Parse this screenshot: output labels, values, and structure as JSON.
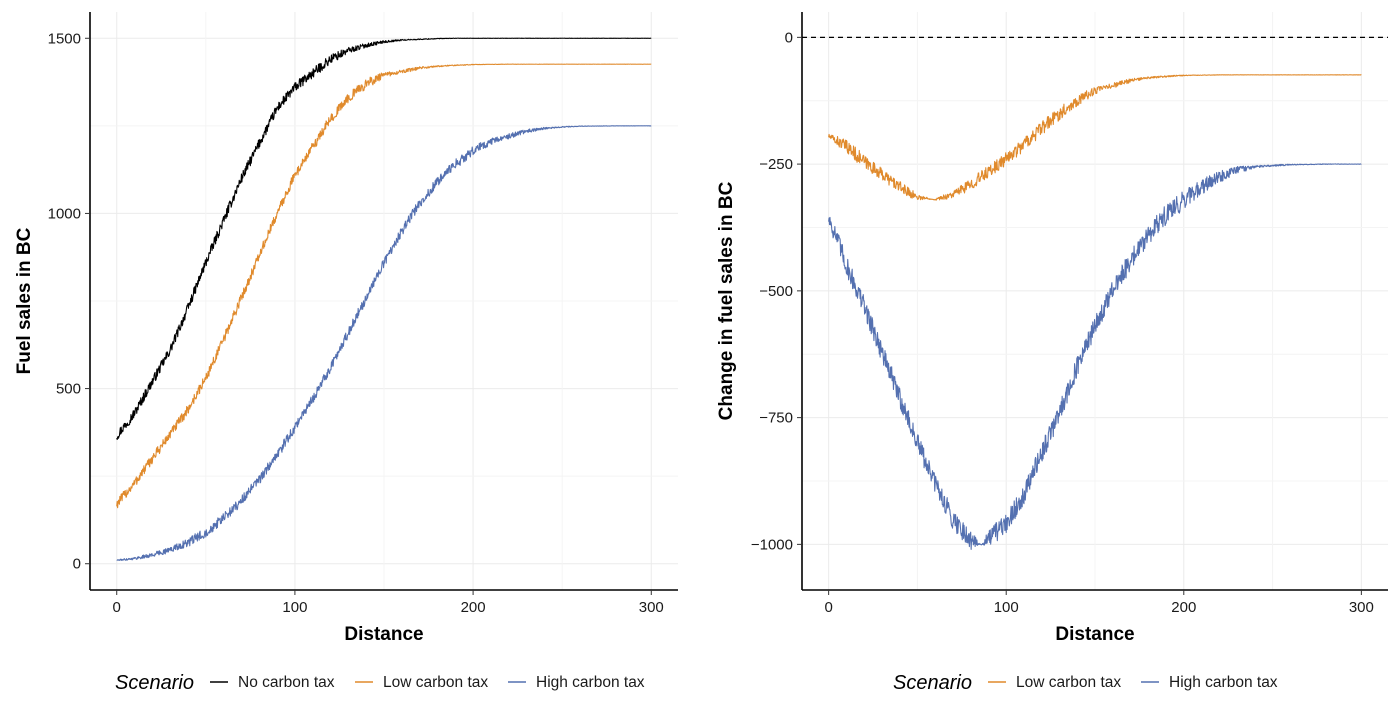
{
  "chart_data": [
    {
      "type": "line",
      "xlabel": "Distance",
      "ylabel": "Fuel sales in BC",
      "xlim": [
        -15,
        315
      ],
      "ylim": [
        -75,
        1575
      ],
      "xticks": [
        0,
        100,
        200,
        300
      ],
      "yticks": [
        0,
        500,
        1000,
        1500
      ],
      "tick_labels": {
        "x": [
          "0",
          "100",
          "200",
          "300"
        ],
        "y": [
          "0",
          "500",
          "1000",
          "1500"
        ]
      },
      "grid": true,
      "legend_position": "bottom",
      "legend_title": "Scenario",
      "series": [
        {
          "name": "No carbon tax",
          "color": "#000000",
          "noise": 14,
          "x": [
            0,
            10,
            20,
            30,
            40,
            50,
            60,
            70,
            80,
            90,
            100,
            110,
            120,
            130,
            140,
            150,
            160,
            170,
            180,
            190,
            200,
            250,
            300
          ],
          "values": [
            365,
            430,
            520,
            610,
            730,
            860,
            980,
            1100,
            1200,
            1300,
            1360,
            1400,
            1440,
            1465,
            1480,
            1490,
            1495,
            1497,
            1499,
            1500,
            1500,
            1500,
            1500
          ]
        },
        {
          "name": "Low carbon tax",
          "color": "#E08A2C",
          "noise": 14,
          "x": [
            0,
            10,
            20,
            30,
            40,
            50,
            60,
            70,
            80,
            90,
            100,
            110,
            120,
            130,
            140,
            150,
            160,
            170,
            180,
            190,
            200,
            220,
            250,
            300
          ],
          "values": [
            170,
            230,
            300,
            370,
            440,
            530,
            640,
            760,
            880,
            1000,
            1110,
            1190,
            1270,
            1330,
            1370,
            1395,
            1405,
            1415,
            1420,
            1423,
            1425,
            1426,
            1426,
            1426
          ]
        },
        {
          "name": "High carbon tax",
          "color": "#5470B0",
          "noise": 14,
          "x": [
            0,
            10,
            20,
            30,
            40,
            50,
            60,
            70,
            80,
            90,
            100,
            110,
            120,
            130,
            140,
            150,
            160,
            170,
            180,
            190,
            200,
            210,
            220,
            230,
            240,
            250,
            260,
            280,
            300
          ],
          "values": [
            10,
            15,
            25,
            40,
            60,
            90,
            130,
            180,
            240,
            310,
            390,
            470,
            560,
            660,
            760,
            860,
            950,
            1030,
            1090,
            1140,
            1180,
            1205,
            1220,
            1235,
            1243,
            1247,
            1249,
            1250,
            1250
          ]
        }
      ]
    },
    {
      "type": "line",
      "xlabel": "Distance",
      "ylabel": "Change in fuel sales in BC",
      "xlim": [
        -15,
        315
      ],
      "ylim": [
        -1090,
        50
      ],
      "xticks": [
        0,
        100,
        200,
        300
      ],
      "yticks": [
        0,
        -250,
        -500,
        -750,
        -1000
      ],
      "tick_labels": {
        "x": [
          "0",
          "100",
          "200",
          "300"
        ],
        "y": [
          "0",
          "−250",
          "−500",
          "−750",
          "−1000"
        ]
      },
      "reference_line": {
        "y": 0,
        "style": "dashed"
      },
      "grid": true,
      "legend_position": "bottom",
      "legend_title": "Scenario",
      "series": [
        {
          "name": "Low carbon tax",
          "color": "#E08A2C",
          "noise": 14,
          "x": [
            0,
            10,
            20,
            30,
            40,
            50,
            60,
            70,
            80,
            90,
            100,
            110,
            120,
            130,
            140,
            150,
            160,
            170,
            180,
            190,
            200,
            220,
            250,
            300
          ],
          "values": [
            -195,
            -215,
            -245,
            -270,
            -295,
            -315,
            -320,
            -310,
            -290,
            -265,
            -240,
            -210,
            -180,
            -150,
            -125,
            -105,
            -95,
            -85,
            -80,
            -77,
            -75,
            -74,
            -74,
            -74
          ]
        },
        {
          "name": "High carbon tax",
          "color": "#5470B0",
          "noise": 20,
          "x": [
            0,
            5,
            10,
            20,
            30,
            40,
            50,
            60,
            70,
            80,
            85,
            90,
            100,
            110,
            120,
            130,
            140,
            150,
            160,
            170,
            180,
            190,
            200,
            210,
            220,
            230,
            240,
            260,
            280,
            300
          ],
          "values": [
            -355,
            -400,
            -450,
            -530,
            -620,
            -710,
            -800,
            -880,
            -950,
            -990,
            -1000,
            -990,
            -960,
            -900,
            -820,
            -740,
            -650,
            -570,
            -500,
            -440,
            -390,
            -350,
            -320,
            -295,
            -275,
            -262,
            -255,
            -251,
            -250,
            -250
          ]
        }
      ]
    }
  ],
  "legends": [
    {
      "title": "Scenario",
      "items": [
        "No carbon tax",
        "Low carbon tax",
        "High carbon tax"
      ]
    },
    {
      "title": "Scenario",
      "items": [
        "Low carbon tax",
        "High carbon tax"
      ]
    }
  ]
}
